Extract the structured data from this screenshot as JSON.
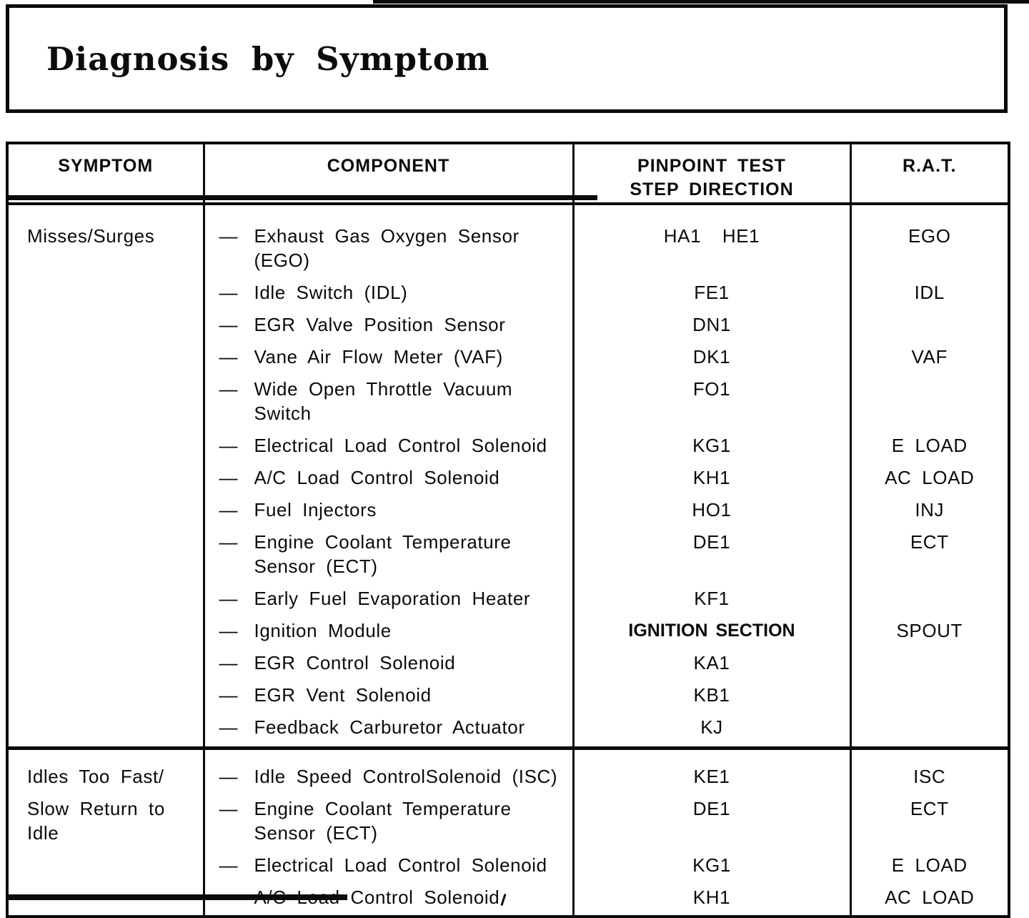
{
  "title": "Diagnosis by Symptom",
  "dash": "—",
  "colors": {
    "ink": "#0b0b0b",
    "paper": "#ffffff"
  },
  "table": {
    "header": {
      "symptom": "SYMPTOM",
      "component": "COMPONENT",
      "pinpoint_line1": "PINPOINT TEST",
      "pinpoint_line2": "STEP DIRECTION",
      "rat": "R.A.T."
    },
    "sections": [
      {
        "rows": [
          {
            "symptom_lines": [
              "Misses/Surges"
            ],
            "component_lines": [
              "Exhaust Gas Oxygen Sensor",
              "(EGO)"
            ],
            "pinpoint": "HA1  HE1",
            "rat": "EGO"
          },
          {
            "symptom_lines": [],
            "component_lines": [
              "Idle Switch (IDL)"
            ],
            "pinpoint": "FE1",
            "rat": "IDL"
          },
          {
            "symptom_lines": [],
            "component_lines": [
              "EGR Valve Position Sensor"
            ],
            "pinpoint": "DN1",
            "rat": ""
          },
          {
            "symptom_lines": [],
            "component_lines": [
              "Vane Air Flow Meter (VAF)"
            ],
            "pinpoint": "DK1",
            "rat": "VAF"
          },
          {
            "symptom_lines": [],
            "component_lines": [
              "Wide Open Throttle Vacuum",
              "Switch"
            ],
            "pinpoint": "FO1",
            "rat": ""
          },
          {
            "symptom_lines": [],
            "component_lines": [
              "Electrical Load Control Solenoid"
            ],
            "pinpoint": "KG1",
            "rat": "E LOAD"
          },
          {
            "symptom_lines": [],
            "component_lines": [
              "A/C Load Control Solenoid"
            ],
            "pinpoint": "KH1",
            "rat": "AC LOAD"
          },
          {
            "symptom_lines": [],
            "component_lines": [
              "Fuel Injectors"
            ],
            "pinpoint": "HO1",
            "rat": "INJ"
          },
          {
            "symptom_lines": [],
            "component_lines": [
              "Engine Coolant Temperature",
              "Sensor (ECT)"
            ],
            "pinpoint": "DE1",
            "rat": "ECT"
          },
          {
            "symptom_lines": [],
            "component_lines": [
              "Early Fuel Evaporation Heater"
            ],
            "pinpoint": "KF1",
            "rat": ""
          },
          {
            "symptom_lines": [],
            "component_lines": [
              "Ignition Module"
            ],
            "pinpoint": "IGNITION SECTION",
            "pinpoint_bold": true,
            "rat": "SPOUT"
          },
          {
            "symptom_lines": [],
            "component_lines": [
              "EGR Control Solenoid"
            ],
            "pinpoint": "KA1",
            "rat": ""
          },
          {
            "symptom_lines": [],
            "component_lines": [
              "EGR Vent Solenoid"
            ],
            "pinpoint": "KB1",
            "rat": ""
          },
          {
            "symptom_lines": [],
            "component_lines": [
              "Feedback Carburetor Actuator"
            ],
            "pinpoint": "KJ",
            "rat": ""
          }
        ]
      },
      {
        "rows": [
          {
            "symptom_lines": [
              "Idles Too Fast/"
            ],
            "component_lines": [
              "Idle Speed ControlSolenoid (ISC)"
            ],
            "pinpoint": "KE1",
            "rat": "ISC"
          },
          {
            "symptom_lines": [
              "Slow Return to",
              "Idle"
            ],
            "component_lines": [
              "Engine Coolant Temperature",
              "Sensor (ECT)"
            ],
            "pinpoint": "DE1",
            "rat": "ECT"
          },
          {
            "symptom_lines": [],
            "component_lines": [
              "Electrical Load Control Solenoid"
            ],
            "pinpoint": "KG1",
            "rat": "E LOAD"
          },
          {
            "symptom_lines": [],
            "component_lines": [
              "A/C Load Control Solenoid"
            ],
            "pinpoint": "KH1",
            "rat": "AC LOAD"
          }
        ]
      }
    ]
  }
}
